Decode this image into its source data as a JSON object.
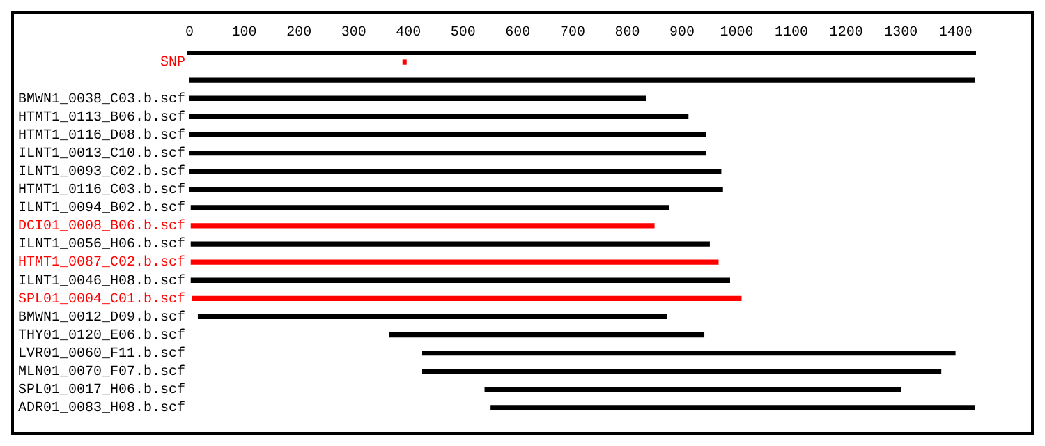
{
  "chart_data": {
    "type": "bar",
    "orientation": "horizontal",
    "categories": [
      "SNP",
      null,
      "BMWN1_0038_C03.b.scf",
      "HTMT1_0113_B06.b.scf",
      "HTMT1_0116_D08.b.scf",
      "ILNT1_0013_C10.b.scf",
      "ILNT1_0093_C02.b.scf",
      "HTMT1_0116_C03.b.scf",
      "ILNT1_0094_B02.b.scf",
      "DCI01_0008_B06.b.scf",
      "ILNT1_0056_H06.b.scf",
      "HTMT1_0087_C02.b.scf",
      "ILNT1_0046_H08.b.scf",
      "SPL01_0004_C01.b.scf",
      "BMWN1_0012_D09.b.scf",
      "THY01_0120_E06.b.scf",
      "LVR01_0060_F11.b.scf",
      "MLN01_0070_F07.b.scf",
      "SPL01_0017_H06.b.scf",
      "ADR01_0083_H08.b.scf"
    ],
    "base": [
      390,
      0,
      0,
      0,
      0,
      0,
      0,
      0,
      3,
      3,
      3,
      3,
      3,
      5,
      16,
      366,
      426,
      426,
      540,
      551
    ],
    "values": [
      6,
      1436,
      833,
      911,
      943,
      943,
      971,
      974,
      872,
      846,
      947,
      963,
      984,
      1003,
      856,
      574,
      973,
      947,
      760,
      885
    ],
    "colors": [
      "#ff0000",
      "#000000",
      "#000000",
      "#000000",
      "#000000",
      "#000000",
      "#000000",
      "#000000",
      "#000000",
      "#ff0000",
      "#000000",
      "#ff0000",
      "#000000",
      "#ff0000",
      "#000000",
      "#000000",
      "#000000",
      "#000000",
      "#000000",
      "#000000"
    ],
    "xlim": [
      0,
      1436
    ],
    "xticks": [
      0,
      100,
      200,
      300,
      400,
      500,
      600,
      700,
      800,
      900,
      1000,
      1100,
      1200,
      1300,
      1400
    ],
    "grid": false,
    "legend": false
  }
}
